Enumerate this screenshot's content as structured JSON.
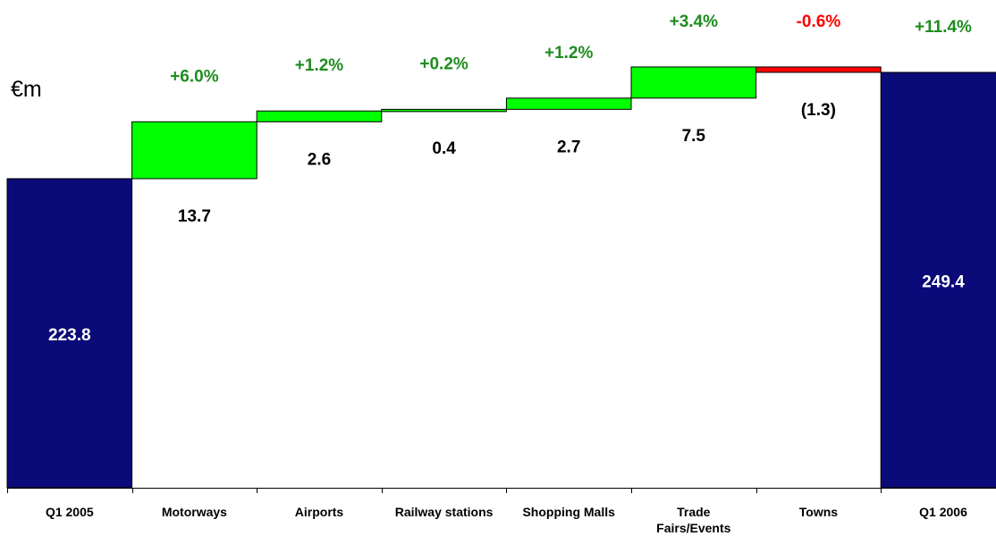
{
  "chart_data": {
    "type": "waterfall",
    "unit_label": "€m",
    "categories": [
      "Q1 2005",
      "Motorways",
      "Airports",
      "Railway stations",
      "Shopping Malls",
      "Trade Fairs/Events",
      "Towns",
      "Q1 2006"
    ],
    "category_lines": [
      [
        "Q1 2005"
      ],
      [
        "Motorways"
      ],
      [
        "Airports"
      ],
      [
        "Railway stations"
      ],
      [
        "Shopping Malls"
      ],
      [
        "Trade",
        "Fairs/Events"
      ],
      [
        "Towns"
      ],
      [
        "Q1 2006"
      ]
    ],
    "bars": [
      {
        "kind": "total",
        "value": 223.8,
        "label": "223.8",
        "pct": ""
      },
      {
        "kind": "delta",
        "value": 13.7,
        "label": "13.7",
        "pct": "+6.0%"
      },
      {
        "kind": "delta",
        "value": 2.6,
        "label": "2.6",
        "pct": "+1.2%"
      },
      {
        "kind": "delta",
        "value": 0.4,
        "label": "0.4",
        "pct": "+0.2%"
      },
      {
        "kind": "delta",
        "value": 2.7,
        "label": "2.7",
        "pct": "+1.2%"
      },
      {
        "kind": "delta",
        "value": 7.5,
        "label": "7.5",
        "pct": "+3.4%"
      },
      {
        "kind": "delta",
        "value": -1.3,
        "label": "(1.3)",
        "pct": "-0.6%"
      },
      {
        "kind": "total",
        "value": 249.4,
        "label": "249.4",
        "pct": "+11.4%"
      }
    ],
    "colors": {
      "total": "#0a0a78",
      "increase": "#00ff00",
      "decrease": "#ff0000",
      "pct_positive": "#1e8c1e",
      "pct_negative": "#ff0000",
      "total_label": "#ffffff",
      "delta_label": "#000000"
    },
    "ylim": [
      160,
      255
    ]
  }
}
